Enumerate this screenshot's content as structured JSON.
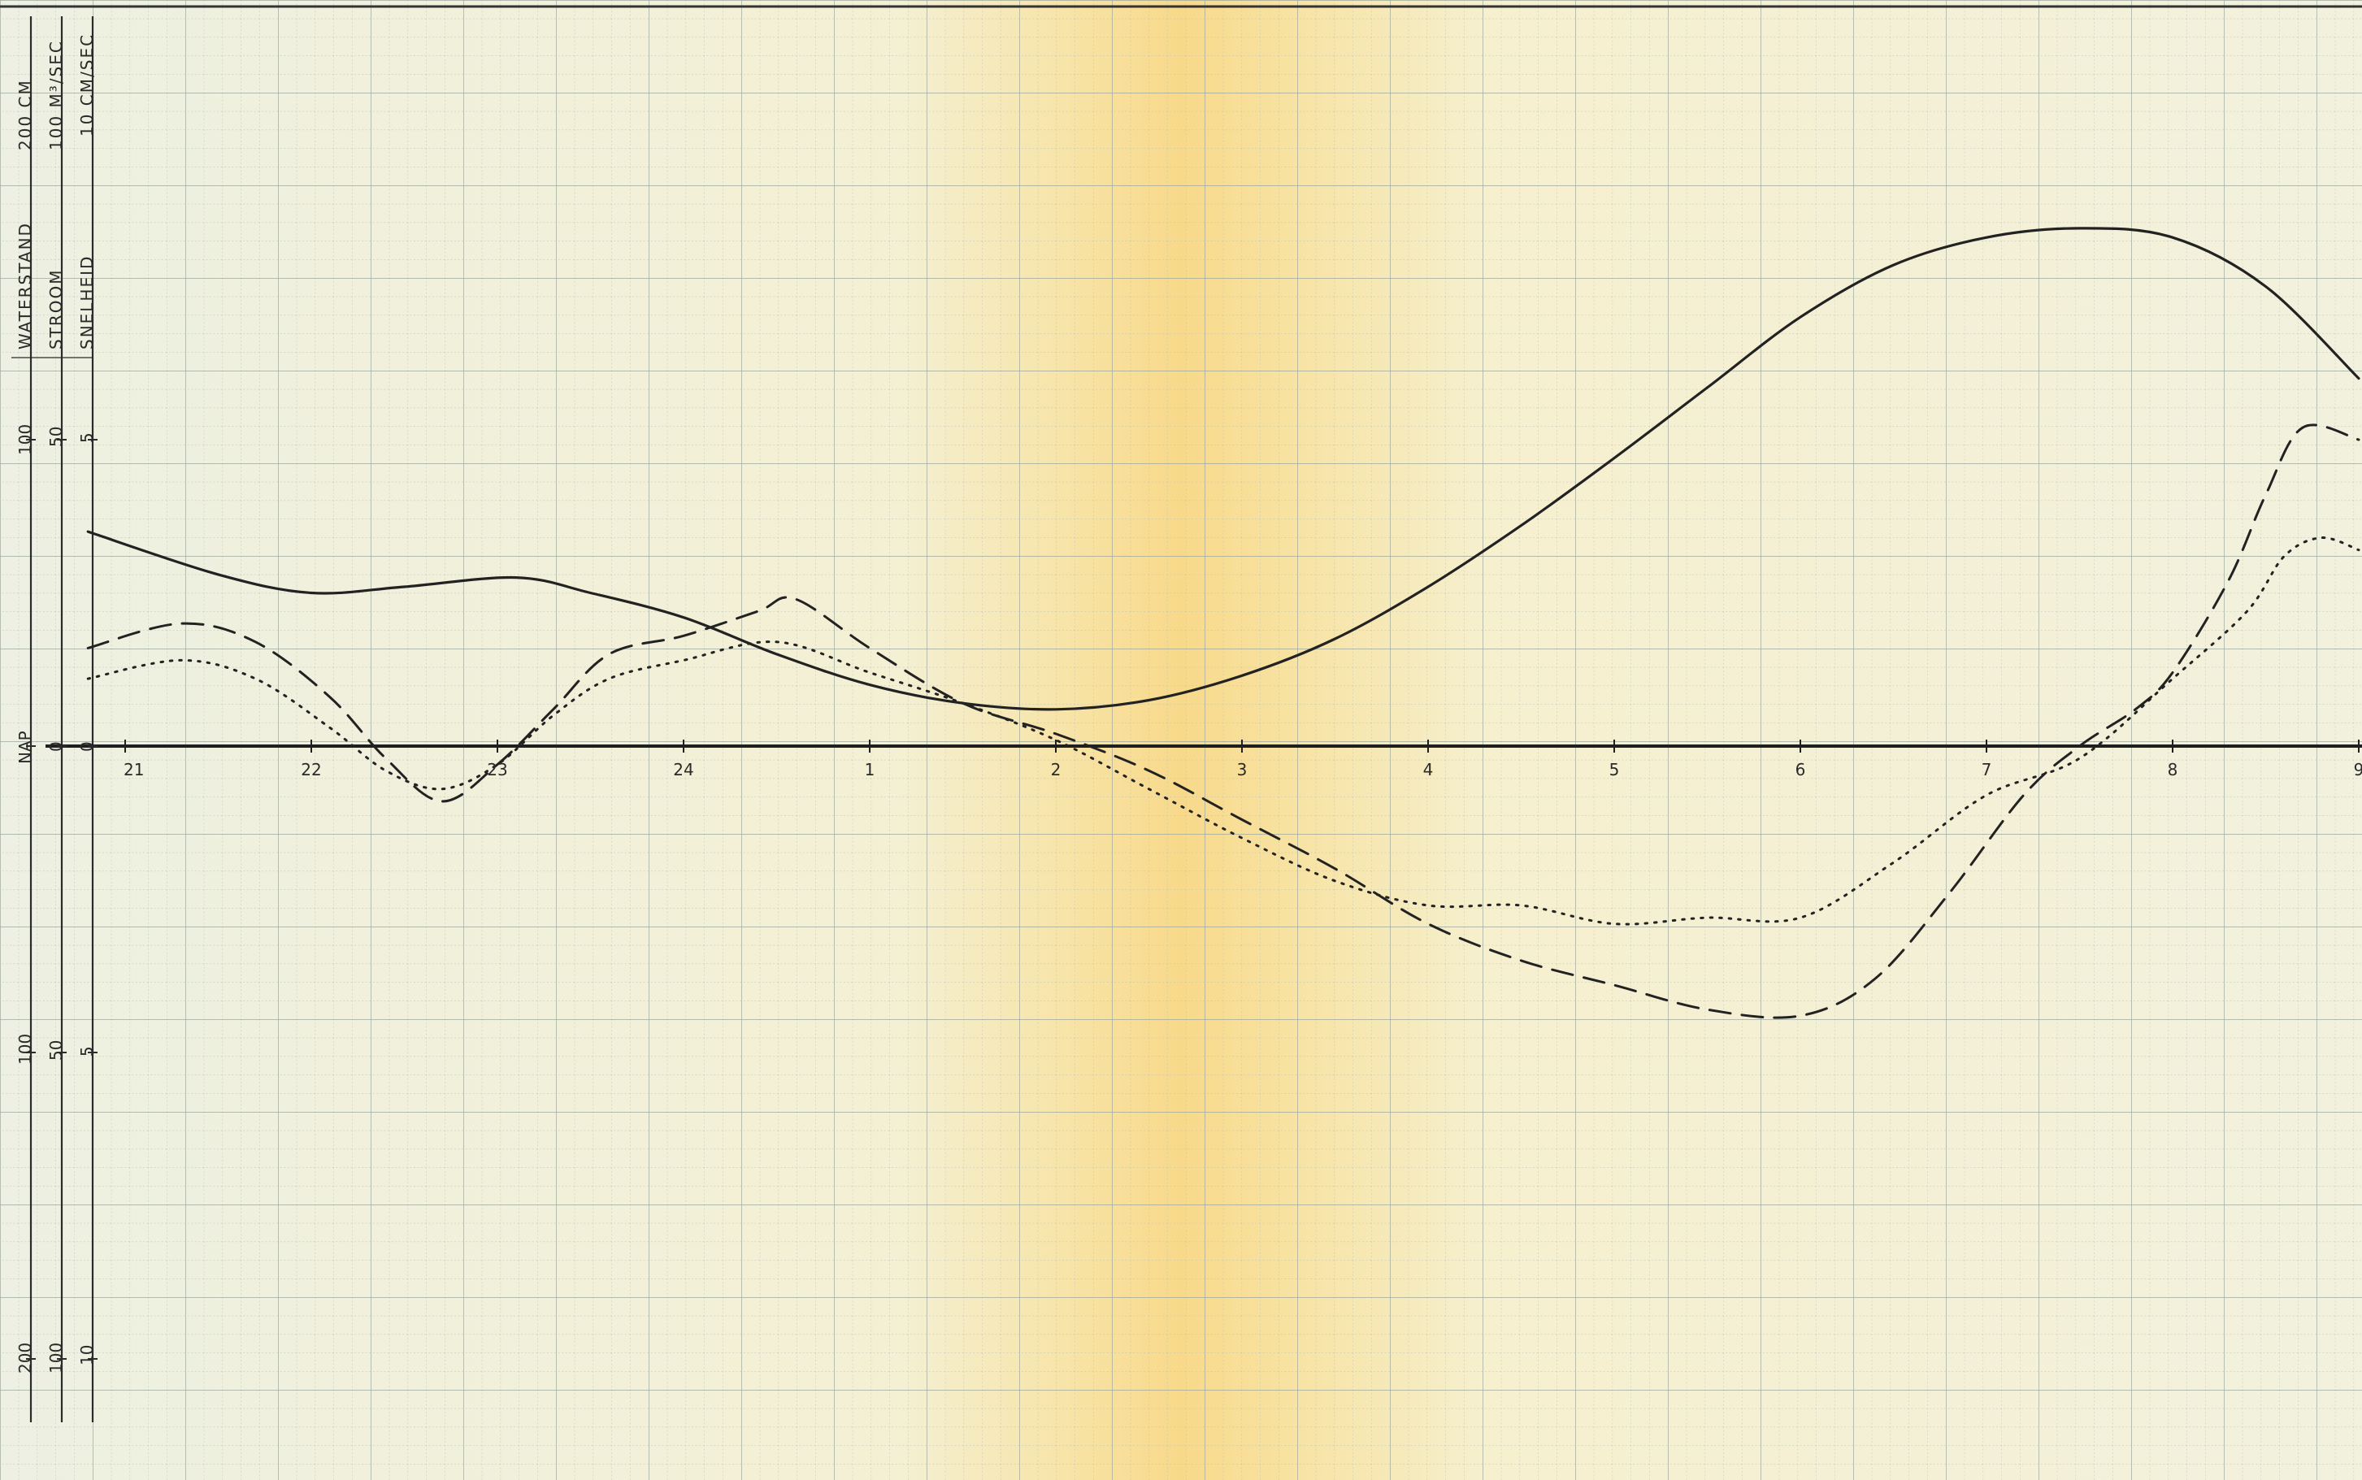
{
  "chart_data": {
    "type": "line",
    "axes": {
      "waterstand": {
        "title": "WATERSTAND",
        "unit": "200 CM",
        "tick_labels": [
          "100",
          "100",
          "200"
        ],
        "zero_label": "NAP",
        "ylim": [
          -200,
          200
        ]
      },
      "stroom": {
        "title": "STROOM",
        "unit": "100 M³/SEC",
        "tick_labels": [
          "50",
          "50",
          "100"
        ],
        "zero_label": "0",
        "ylim": [
          -100,
          100
        ]
      },
      "snelheid": {
        "title": "SNELHEID",
        "unit": "10 CM/SEC",
        "tick_labels": [
          "5",
          "5",
          "10"
        ],
        "zero_label": "0",
        "ylim": [
          -10,
          10
        ]
      }
    },
    "x_tick_labels": [
      "21",
      "22",
      "23",
      "24",
      "1",
      "2",
      "3",
      "4",
      "5",
      "6",
      "7",
      "8",
      "9"
    ],
    "xlim": [
      -0.2,
      12
    ],
    "grid": true,
    "legend": "none",
    "series": [
      {
        "style": "solid",
        "axis": "waterstand",
        "points": [
          [
            -0.2,
            70
          ],
          [
            0.5,
            56
          ],
          [
            1.0,
            50
          ],
          [
            1.5,
            52
          ],
          [
            2.1,
            55
          ],
          [
            2.5,
            50
          ],
          [
            3.0,
            42
          ],
          [
            3.5,
            30
          ],
          [
            4.0,
            20
          ],
          [
            4.5,
            14
          ],
          [
            5.0,
            12
          ],
          [
            5.5,
            15
          ],
          [
            6.0,
            23
          ],
          [
            6.5,
            35
          ],
          [
            7.0,
            52
          ],
          [
            7.5,
            72
          ],
          [
            8.0,
            94
          ],
          [
            8.5,
            117
          ],
          [
            9.0,
            140
          ],
          [
            9.5,
            157
          ],
          [
            10.0,
            166
          ],
          [
            10.5,
            169
          ],
          [
            11.0,
            166
          ],
          [
            11.5,
            150
          ],
          [
            12.0,
            120
          ]
        ]
      },
      {
        "style": "dashed",
        "axis": "stroom",
        "points": [
          [
            -0.2,
            16
          ],
          [
            0.3,
            20
          ],
          [
            0.7,
            17
          ],
          [
            1.1,
            8
          ],
          [
            1.4,
            -2
          ],
          [
            1.7,
            -9
          ],
          [
            2.0,
            -3
          ],
          [
            2.3,
            6
          ],
          [
            2.6,
            15
          ],
          [
            3.0,
            18
          ],
          [
            3.4,
            22
          ],
          [
            3.6,
            24
          ],
          [
            4.0,
            16
          ],
          [
            4.5,
            7
          ],
          [
            5.0,
            2
          ],
          [
            5.5,
            -4
          ],
          [
            6.0,
            -12
          ],
          [
            6.5,
            -20
          ],
          [
            7.0,
            -29
          ],
          [
            7.5,
            -35
          ],
          [
            8.0,
            -39
          ],
          [
            8.5,
            -43
          ],
          [
            9.0,
            -44
          ],
          [
            9.4,
            -38
          ],
          [
            9.8,
            -24
          ],
          [
            10.2,
            -8
          ],
          [
            10.5,
            0
          ],
          [
            10.8,
            6
          ],
          [
            11.0,
            12
          ],
          [
            11.3,
            27
          ],
          [
            11.5,
            41
          ],
          [
            11.7,
            52
          ],
          [
            12.0,
            50
          ]
        ]
      },
      {
        "style": "dotted",
        "axis": "stroom",
        "points": [
          [
            -0.2,
            11
          ],
          [
            0.3,
            14
          ],
          [
            0.7,
            11
          ],
          [
            1.1,
            3
          ],
          [
            1.4,
            -4
          ],
          [
            1.7,
            -7
          ],
          [
            2.0,
            -3
          ],
          [
            2.3,
            5
          ],
          [
            2.6,
            11
          ],
          [
            3.0,
            14
          ],
          [
            3.5,
            17
          ],
          [
            4.0,
            12
          ],
          [
            4.5,
            7
          ],
          [
            5.0,
            1
          ],
          [
            5.5,
            -7
          ],
          [
            6.0,
            -15
          ],
          [
            6.5,
            -22
          ],
          [
            7.0,
            -26
          ],
          [
            7.5,
            -26
          ],
          [
            8.0,
            -29
          ],
          [
            8.5,
            -28
          ],
          [
            9.0,
            -28
          ],
          [
            9.5,
            -19
          ],
          [
            10.0,
            -8
          ],
          [
            10.5,
            -2
          ],
          [
            11.0,
            11
          ],
          [
            11.4,
            22
          ],
          [
            11.6,
            31
          ],
          [
            11.8,
            34
          ],
          [
            12.0,
            32
          ]
        ]
      }
    ]
  }
}
